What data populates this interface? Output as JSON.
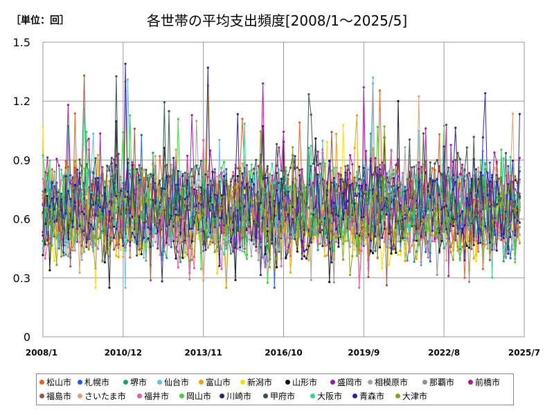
{
  "unit_label": "［単位：回］",
  "chart_data": {
    "type": "line",
    "title": "各世帯の平均支出頻度[2008/1～2025/5]",
    "xlabel": "",
    "ylabel": "",
    "x_range": [
      "2008/1",
      "2025/7"
    ],
    "ylim": [
      0,
      1.5
    ],
    "y_ticks": [
      "0",
      "0.3",
      "0.6",
      "0.9",
      "1.2",
      "1.5"
    ],
    "x_ticks": [
      "2008/1",
      "2010/12",
      "2013/11",
      "2016/10",
      "2019/9",
      "2022/8",
      "2025/7"
    ],
    "grid": true,
    "legend_position": "bottom",
    "note": "Monthly values from 2008/1 to 2025/5; most series fluctuate between roughly 0.35 and 1.1 around a mean near 0.65. Notable extremes: a spike near 1.39 and a dip near 0.12 around 2011/1; peaks near 1.33 (2009/7), 1.37 and 1.29 (2014/1), 1.32 and 1.29 (2020/1); a low near 0.28 (2023/7).",
    "series": [
      {
        "name": "松山市",
        "color": "#f05a1a"
      },
      {
        "name": "札幌市",
        "color": "#1a5fe0"
      },
      {
        "name": "堺市",
        "color": "#18a070"
      },
      {
        "name": "仙台市",
        "color": "#5cc0ea"
      },
      {
        "name": "富山市",
        "color": "#f0a000"
      },
      {
        "name": "新潟市",
        "color": "#f0e000"
      },
      {
        "name": "山形市",
        "color": "#111111"
      },
      {
        "name": "盛岡市",
        "color": "#9a1aa8"
      },
      {
        "name": "相模原市",
        "color": "#a0a0a0"
      },
      {
        "name": "那覇市",
        "color": "#909090"
      },
      {
        "name": "前橋市",
        "color": "#b0169a"
      },
      {
        "name": "福島市",
        "color": "#9a5540"
      },
      {
        "name": "さいたま市",
        "color": "#e0a070"
      },
      {
        "name": "福井市",
        "color": "#ee5aa0"
      },
      {
        "name": "岡山市",
        "color": "#40d040"
      },
      {
        "name": "川崎市",
        "color": "#30207a"
      },
      {
        "name": "甲府市",
        "color": "#335544"
      },
      {
        "name": "大阪市",
        "color": "#30d0a0"
      },
      {
        "name": "青森市",
        "color": "#2a20a8"
      },
      {
        "name": "大津市",
        "color": "#909a20"
      }
    ]
  }
}
